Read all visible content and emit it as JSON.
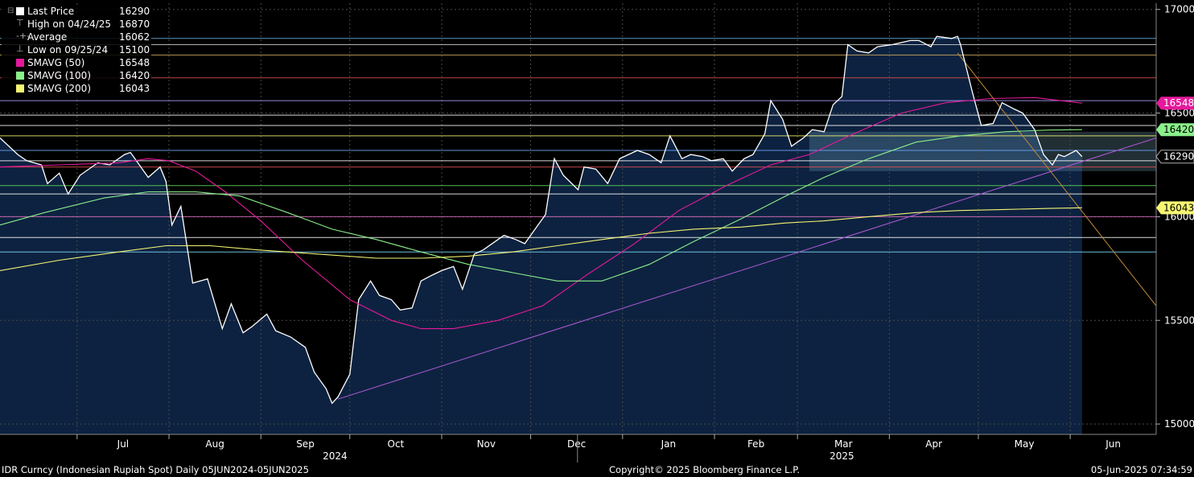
{
  "footer": {
    "left": "IDR Curncy (Indonesian Rupiah Spot)  Daily 05JUN2024-05JUN2025",
    "center": "Copyright© 2025 Bloomberg Finance L.P.",
    "right": "05-Jun-2025 07:34:59"
  },
  "legend": [
    {
      "label": "Last Price",
      "value": "16290",
      "color": "#ffffff",
      "icon": "square-icon"
    },
    {
      "label": "High on 04/24/25",
      "value": "16870",
      "color": "#aaaaaa",
      "icon": "high-marker-icon"
    },
    {
      "label": "Average",
      "value": "16062",
      "color": "#aaaaaa",
      "icon": "average-marker-icon"
    },
    {
      "label": "Low on 09/25/24",
      "value": "15100",
      "color": "#aaaaaa",
      "icon": "low-marker-icon"
    },
    {
      "label": "SMAVG (50)",
      "value": "16548",
      "color": "#e6199b",
      "icon": "square-icon"
    },
    {
      "label": "SMAVG (100)",
      "value": "16420",
      "color": "#8af08a",
      "icon": "square-icon"
    },
    {
      "label": "SMAVG (200)",
      "value": "16043",
      "color": "#f5f573",
      "icon": "square-icon"
    }
  ],
  "chart_data": {
    "type": "line",
    "xlim": [
      "2024-06-05",
      "2025-06-30"
    ],
    "ylim": [
      14950,
      17030
    ],
    "grid": true,
    "y_ticks": [
      15000,
      15500,
      16000,
      16500,
      17000
    ],
    "month_ticks": [
      {
        "label": "Jul",
        "date": "2024-07-01"
      },
      {
        "label": "Aug",
        "date": "2024-08-01"
      },
      {
        "label": "Sep",
        "date": "2024-09-01"
      },
      {
        "label": "Oct",
        "date": "2024-10-01"
      },
      {
        "label": "Nov",
        "date": "2024-11-01"
      },
      {
        "label": "Dec",
        "date": "2024-12-01"
      },
      {
        "label": "Jan",
        "date": "2025-01-01"
      },
      {
        "label": "Feb",
        "date": "2025-02-01"
      },
      {
        "label": "Mar",
        "date": "2025-03-01"
      },
      {
        "label": "Apr",
        "date": "2025-04-01"
      },
      {
        "label": "May",
        "date": "2025-05-01"
      },
      {
        "label": "Jun",
        "date": "2025-06-01"
      }
    ],
    "year_ticks": [
      {
        "label": "2024",
        "date": "2024-09-26"
      },
      {
        "label": "2025",
        "date": "2025-03-16"
      }
    ],
    "price_tags": [
      {
        "value": 16548,
        "color": "#e6199b",
        "text_color": "#ffffff"
      },
      {
        "value": 16420,
        "color": "#8af08a",
        "text_color": "#000000"
      },
      {
        "value": 16290,
        "color": "#000000",
        "text_color": "#ffffff"
      },
      {
        "value": 16043,
        "color": "#f5f573",
        "text_color": "#000000"
      }
    ],
    "hlines": [
      {
        "value": 16860,
        "color": "#6fb0e0"
      },
      {
        "value": 16830,
        "color": "#d0d0d0"
      },
      {
        "value": 16780,
        "color": "#d8b060"
      },
      {
        "value": 16670,
        "color": "#e05050"
      },
      {
        "value": 16560,
        "color": "#b0a0ff"
      },
      {
        "value": 16490,
        "color": "#ffffff"
      },
      {
        "value": 16440,
        "color": "#ffffff"
      },
      {
        "value": 16390,
        "color": "#f5f573"
      },
      {
        "value": 16320,
        "color": "#6fa8ff"
      },
      {
        "value": 16270,
        "color": "#ffffff"
      },
      {
        "value": 16240,
        "color": "#e05050"
      },
      {
        "value": 16150,
        "color": "#60e060"
      },
      {
        "value": 16110,
        "color": "#ffffff"
      },
      {
        "value": 16000,
        "color": "#e070c0"
      },
      {
        "value": 15900,
        "color": "#ffffff"
      },
      {
        "value": 15830,
        "color": "#80e0ff"
      }
    ],
    "trendlines": [
      {
        "from": [
          "2024-09-27",
          15120
        ],
        "to": [
          "2025-06-30",
          16380
        ],
        "color": "#b05ad8"
      },
      {
        "from": [
          "2025-04-24",
          16790
        ],
        "to": [
          "2025-06-30",
          15570
        ],
        "color": "#c08a3a"
      }
    ],
    "series": [
      {
        "name": "Last Price",
        "color": "#ffffff",
        "points": [
          [
            "2024-06-05",
            16380
          ],
          [
            "2024-06-11",
            16300
          ],
          [
            "2024-06-14",
            16270
          ],
          [
            "2024-06-19",
            16250
          ],
          [
            "2024-06-21",
            16160
          ],
          [
            "2024-06-25",
            16210
          ],
          [
            "2024-06-28",
            16110
          ],
          [
            "2024-07-02",
            16200
          ],
          [
            "2024-07-08",
            16260
          ],
          [
            "2024-07-12",
            16250
          ],
          [
            "2024-07-17",
            16300
          ],
          [
            "2024-07-19",
            16310
          ],
          [
            "2024-07-22",
            16250
          ],
          [
            "2024-07-25",
            16190
          ],
          [
            "2024-07-29",
            16240
          ],
          [
            "2024-07-31",
            16170
          ],
          [
            "2024-08-02",
            15960
          ],
          [
            "2024-08-05",
            16050
          ],
          [
            "2024-08-09",
            15680
          ],
          [
            "2024-08-14",
            15700
          ],
          [
            "2024-08-19",
            15460
          ],
          [
            "2024-08-22",
            15580
          ],
          [
            "2024-08-26",
            15440
          ],
          [
            "2024-08-29",
            15470
          ],
          [
            "2024-09-03",
            15530
          ],
          [
            "2024-09-06",
            15450
          ],
          [
            "2024-09-11",
            15420
          ],
          [
            "2024-09-16",
            15370
          ],
          [
            "2024-09-19",
            15250
          ],
          [
            "2024-09-23",
            15170
          ],
          [
            "2024-09-25",
            15100
          ],
          [
            "2024-09-27",
            15130
          ],
          [
            "2024-10-01",
            15240
          ],
          [
            "2024-10-04",
            15600
          ],
          [
            "2024-10-08",
            15690
          ],
          [
            "2024-10-11",
            15620
          ],
          [
            "2024-10-15",
            15600
          ],
          [
            "2024-10-18",
            15550
          ],
          [
            "2024-10-22",
            15560
          ],
          [
            "2024-10-25",
            15690
          ],
          [
            "2024-10-29",
            15720
          ],
          [
            "2024-11-01",
            15740
          ],
          [
            "2024-11-05",
            15760
          ],
          [
            "2024-11-08",
            15650
          ],
          [
            "2024-11-12",
            15820
          ],
          [
            "2024-11-15",
            15840
          ],
          [
            "2024-11-19",
            15880
          ],
          [
            "2024-11-22",
            15910
          ],
          [
            "2024-11-26",
            15890
          ],
          [
            "2024-11-29",
            15870
          ],
          [
            "2024-12-03",
            15950
          ],
          [
            "2024-12-06",
            16010
          ],
          [
            "2024-12-09",
            16280
          ],
          [
            "2024-12-12",
            16200
          ],
          [
            "2024-12-17",
            16130
          ],
          [
            "2024-12-19",
            16240
          ],
          [
            "2024-12-23",
            16230
          ],
          [
            "2024-12-27",
            16160
          ],
          [
            "2024-12-31",
            16280
          ],
          [
            "2025-01-06",
            16320
          ],
          [
            "2025-01-10",
            16300
          ],
          [
            "2025-01-14",
            16260
          ],
          [
            "2025-01-17",
            16390
          ],
          [
            "2025-01-21",
            16280
          ],
          [
            "2025-01-24",
            16300
          ],
          [
            "2025-01-28",
            16290
          ],
          [
            "2025-01-31",
            16270
          ],
          [
            "2025-02-04",
            16280
          ],
          [
            "2025-02-07",
            16220
          ],
          [
            "2025-02-11",
            16280
          ],
          [
            "2025-02-14",
            16300
          ],
          [
            "2025-02-18",
            16400
          ],
          [
            "2025-02-20",
            16560
          ],
          [
            "2025-02-24",
            16470
          ],
          [
            "2025-02-27",
            16340
          ],
          [
            "2025-03-03",
            16380
          ],
          [
            "2025-03-06",
            16420
          ],
          [
            "2025-03-10",
            16410
          ],
          [
            "2025-03-13",
            16540
          ],
          [
            "2025-03-16",
            16580
          ],
          [
            "2025-03-18",
            16830
          ],
          [
            "2025-03-21",
            16800
          ],
          [
            "2025-03-25",
            16790
          ],
          [
            "2025-03-28",
            16820
          ],
          [
            "2025-04-02",
            16830
          ],
          [
            "2025-04-08",
            16850
          ],
          [
            "2025-04-11",
            16850
          ],
          [
            "2025-04-15",
            16820
          ],
          [
            "2025-04-17",
            16870
          ],
          [
            "2025-04-22",
            16860
          ],
          [
            "2025-04-24",
            16870
          ],
          [
            "2025-04-25",
            16830
          ],
          [
            "2025-04-29",
            16600
          ],
          [
            "2025-05-02",
            16440
          ],
          [
            "2025-05-06",
            16450
          ],
          [
            "2025-05-09",
            16550
          ],
          [
            "2025-05-13",
            16520
          ],
          [
            "2025-05-16",
            16500
          ],
          [
            "2025-05-20",
            16420
          ],
          [
            "2025-05-23",
            16300
          ],
          [
            "2025-05-26",
            16250
          ],
          [
            "2025-05-28",
            16300
          ],
          [
            "2025-05-30",
            16290
          ],
          [
            "2025-06-03",
            16320
          ],
          [
            "2025-06-05",
            16290
          ]
        ]
      },
      {
        "name": "SMAVG (50)",
        "color": "#e6199b",
        "points": [
          [
            "2024-06-05",
            16240
          ],
          [
            "2024-06-25",
            16250
          ],
          [
            "2024-07-15",
            16260
          ],
          [
            "2024-07-25",
            16280
          ],
          [
            "2024-08-01",
            16270
          ],
          [
            "2024-08-10",
            16220
          ],
          [
            "2024-08-20",
            16120
          ],
          [
            "2024-09-01",
            15980
          ],
          [
            "2024-09-15",
            15790
          ],
          [
            "2024-10-01",
            15600
          ],
          [
            "2024-10-15",
            15500
          ],
          [
            "2024-10-25",
            15460
          ],
          [
            "2024-11-05",
            15460
          ],
          [
            "2024-11-20",
            15500
          ],
          [
            "2024-12-05",
            15570
          ],
          [
            "2024-12-20",
            15720
          ],
          [
            "2025-01-05",
            15870
          ],
          [
            "2025-01-20",
            16030
          ],
          [
            "2025-02-05",
            16150
          ],
          [
            "2025-02-20",
            16250
          ],
          [
            "2025-03-05",
            16300
          ],
          [
            "2025-03-20",
            16400
          ],
          [
            "2025-04-05",
            16500
          ],
          [
            "2025-04-20",
            16550
          ],
          [
            "2025-05-05",
            16570
          ],
          [
            "2025-05-20",
            16575
          ],
          [
            "2025-06-05",
            16548
          ]
        ]
      },
      {
        "name": "SMAVG (100)",
        "color": "#8af08a",
        "points": [
          [
            "2024-06-05",
            15960
          ],
          [
            "2024-06-20",
            16020
          ],
          [
            "2024-07-10",
            16090
          ],
          [
            "2024-07-25",
            16120
          ],
          [
            "2024-08-10",
            16120
          ],
          [
            "2024-08-25",
            16100
          ],
          [
            "2024-09-10",
            16020
          ],
          [
            "2024-09-25",
            15940
          ],
          [
            "2024-10-10",
            15890
          ],
          [
            "2024-10-25",
            15830
          ],
          [
            "2024-11-10",
            15770
          ],
          [
            "2024-11-25",
            15730
          ],
          [
            "2024-12-10",
            15690
          ],
          [
            "2024-12-25",
            15690
          ],
          [
            "2025-01-10",
            15770
          ],
          [
            "2025-01-25",
            15880
          ],
          [
            "2025-02-10",
            15990
          ],
          [
            "2025-02-25",
            16100
          ],
          [
            "2025-03-10",
            16190
          ],
          [
            "2025-03-25",
            16280
          ],
          [
            "2025-04-10",
            16360
          ],
          [
            "2025-04-25",
            16390
          ],
          [
            "2025-05-10",
            16410
          ],
          [
            "2025-05-25",
            16418
          ],
          [
            "2025-06-05",
            16420
          ]
        ]
      },
      {
        "name": "SMAVG (200)",
        "color": "#f5f573",
        "points": [
          [
            "2024-06-05",
            15740
          ],
          [
            "2024-06-25",
            15790
          ],
          [
            "2024-07-15",
            15830
          ],
          [
            "2024-07-31",
            15860
          ],
          [
            "2024-08-15",
            15860
          ],
          [
            "2024-08-31",
            15840
          ],
          [
            "2024-09-20",
            15820
          ],
          [
            "2024-10-10",
            15800
          ],
          [
            "2024-10-25",
            15800
          ],
          [
            "2024-11-10",
            15810
          ],
          [
            "2024-11-25",
            15830
          ],
          [
            "2024-12-10",
            15860
          ],
          [
            "2024-12-25",
            15890
          ],
          [
            "2025-01-10",
            15920
          ],
          [
            "2025-01-25",
            15940
          ],
          [
            "2025-02-10",
            15950
          ],
          [
            "2025-02-25",
            15970
          ],
          [
            "2025-03-10",
            15980
          ],
          [
            "2025-03-25",
            16000
          ],
          [
            "2025-04-10",
            16020
          ],
          [
            "2025-04-25",
            16030
          ],
          [
            "2025-05-10",
            16035
          ],
          [
            "2025-05-25",
            16040
          ],
          [
            "2025-06-05",
            16043
          ]
        ]
      }
    ]
  }
}
